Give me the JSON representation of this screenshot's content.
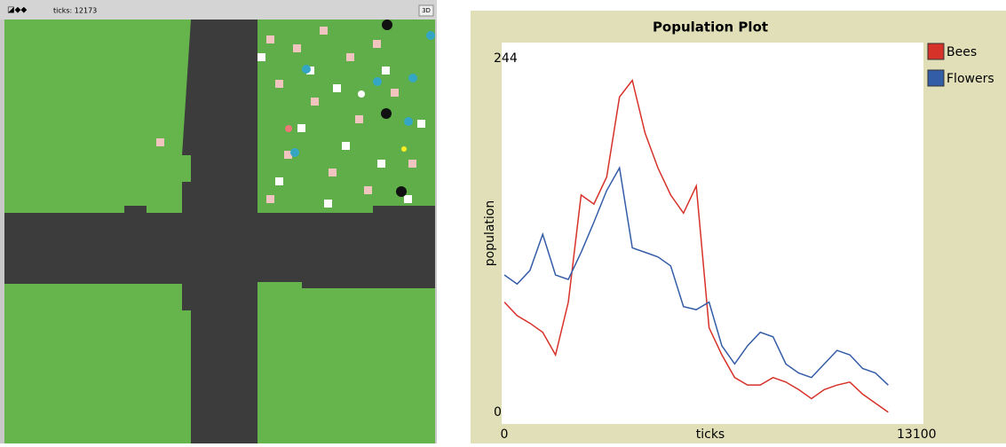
{
  "view": {
    "ticks_label": "ticks: 12173",
    "button": "3D"
  },
  "chart_data": {
    "type": "line",
    "title": "Population Plot",
    "x_label": "ticks",
    "y_label": "population",
    "xlim": [
      0,
      13100
    ],
    "ylim": [
      0,
      244
    ],
    "xticks": [
      0,
      13100
    ],
    "yticks": [
      0,
      244
    ],
    "legend": "right",
    "x": [
      0,
      400,
      800,
      1200,
      1600,
      2000,
      2400,
      2800,
      3200,
      3600,
      4000,
      4400,
      4800,
      5200,
      5600,
      6000,
      6400,
      6800,
      7200,
      7600,
      8000,
      8400,
      8800,
      9200,
      9600,
      10000,
      10400,
      10800,
      11200,
      11600,
      12000
    ],
    "series": [
      {
        "name": "Bees",
        "color": "#d73229",
        "values": [
          79,
          70,
          65,
          59,
          44,
          79,
          150,
          144,
          162,
          215,
          226,
          191,
          168,
          150,
          138,
          156,
          62,
          44,
          29,
          24,
          24,
          29,
          26,
          21,
          15,
          21,
          24,
          26,
          18,
          12,
          6
        ]
      },
      {
        "name": "Flowers",
        "color": "#345da7",
        "values": [
          97,
          91,
          100,
          124,
          97,
          94,
          112,
          132,
          153,
          168,
          115,
          112,
          109,
          103,
          76,
          74,
          79,
          50,
          38,
          50,
          59,
          56,
          38,
          32,
          29,
          38,
          47,
          44,
          35,
          32,
          24
        ]
      }
    ]
  }
}
